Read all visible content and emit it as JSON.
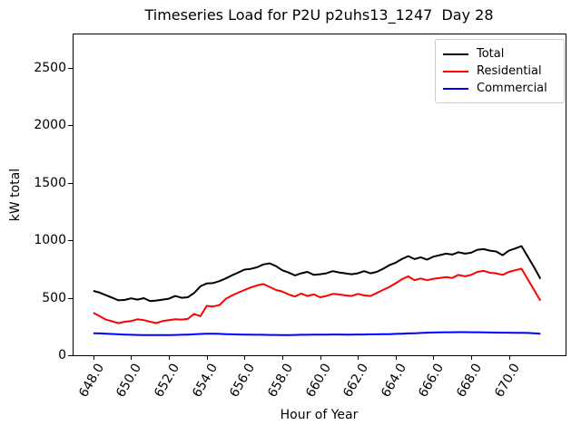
{
  "chart_data": {
    "type": "line",
    "title": "Timeseries Load for P2U p2uhs13_1247  Day 28",
    "xlabel": "Hour of Year",
    "ylabel": "kW total",
    "xlim": [
      646.9,
      673.0
    ],
    "ylim": [
      0,
      2800
    ],
    "grid": false,
    "xticks": [
      648,
      650,
      652,
      654,
      656,
      658,
      660,
      662,
      664,
      666,
      668,
      670
    ],
    "xtick_labels": [
      "648.0",
      "650.0",
      "652.0",
      "654.0",
      "656.0",
      "658.0",
      "660.0",
      "662.0",
      "664.0",
      "666.0",
      "668.0",
      "670.0"
    ],
    "yticks": [
      0,
      500,
      1000,
      1500,
      2000,
      2500
    ],
    "ytick_labels": [
      "0",
      "500",
      "1000",
      "1500",
      "2000",
      "2500"
    ],
    "legend": {
      "position": "upper right",
      "entries": [
        {
          "name": "Total",
          "color": "#000000"
        },
        {
          "name": "Residential",
          "color": "#ff0000"
        },
        {
          "name": "Commercial",
          "color": "#0000ff"
        }
      ]
    },
    "x": [
      648.0,
      648.33,
      648.67,
      649.0,
      649.33,
      649.67,
      650.0,
      650.33,
      650.67,
      651.0,
      651.33,
      651.67,
      652.0,
      652.33,
      652.67,
      653.0,
      653.33,
      653.67,
      654.0,
      654.33,
      654.67,
      655.0,
      655.33,
      655.67,
      656.0,
      656.33,
      656.67,
      657.0,
      657.33,
      657.67,
      658.0,
      658.33,
      658.67,
      659.0,
      659.33,
      659.67,
      660.0,
      660.33,
      660.67,
      661.0,
      661.33,
      661.67,
      662.0,
      662.33,
      662.67,
      663.0,
      663.33,
      663.67,
      664.0,
      664.33,
      664.67,
      665.0,
      665.33,
      665.67,
      666.0,
      666.33,
      666.67,
      667.0,
      667.33,
      667.67,
      668.0,
      668.33,
      668.67,
      669.0,
      669.33,
      669.67,
      670.0,
      670.33,
      670.67,
      671.0,
      671.33,
      671.67
    ],
    "series": [
      {
        "name": "Total",
        "color": "#000000",
        "values": [
          560,
          545,
          522,
          500,
          478,
          482,
          495,
          484,
          497,
          472,
          476,
          484,
          492,
          516,
          500,
          505,
          542,
          600,
          625,
          628,
          645,
          668,
          695,
          720,
          745,
          752,
          766,
          790,
          800,
          775,
          740,
          720,
          695,
          713,
          726,
          700,
          705,
          713,
          732,
          721,
          713,
          705,
          713,
          732,
          713,
          726,
          752,
          784,
          805,
          837,
          863,
          837,
          853,
          832,
          858,
          871,
          884,
          876,
          897,
          884,
          892,
          918,
          924,
          910,
          903,
          871,
          910,
          929,
          950,
          858,
          766,
          666
        ]
      },
      {
        "name": "Residential",
        "color": "#ff0000",
        "values": [
          370,
          340,
          310,
          295,
          280,
          292,
          298,
          313,
          306,
          292,
          280,
          298,
          306,
          313,
          311,
          316,
          360,
          340,
          430,
          424,
          436,
          490,
          520,
          545,
          568,
          590,
          608,
          620,
          595,
          568,
          555,
          529,
          511,
          537,
          516,
          529,
          505,
          516,
          534,
          529,
          521,
          516,
          534,
          521,
          516,
          542,
          568,
          595,
          626,
          661,
          687,
          653,
          668,
          653,
          666,
          673,
          681,
          673,
          700,
          687,
          700,
          726,
          734,
          718,
          713,
          700,
          726,
          740,
          753,
          661,
          568,
          475
        ]
      },
      {
        "name": "Commercial",
        "color": "#0000ff",
        "values": [
          192,
          190,
          188,
          185,
          182,
          180,
          178,
          177,
          176,
          175,
          175,
          176,
          176,
          177,
          178,
          180,
          182,
          185,
          188,
          187,
          186,
          184,
          182,
          181,
          180,
          179,
          178,
          178,
          177,
          177,
          176,
          176,
          177,
          178,
          178,
          179,
          180,
          180,
          181,
          181,
          180,
          180,
          181,
          181,
          182,
          182,
          183,
          184,
          186,
          188,
          190,
          192,
          194,
          196,
          198,
          199,
          200,
          200,
          201,
          201,
          200,
          200,
          199,
          198,
          197,
          196,
          196,
          195,
          195,
          194,
          191,
          188
        ]
      }
    ]
  }
}
